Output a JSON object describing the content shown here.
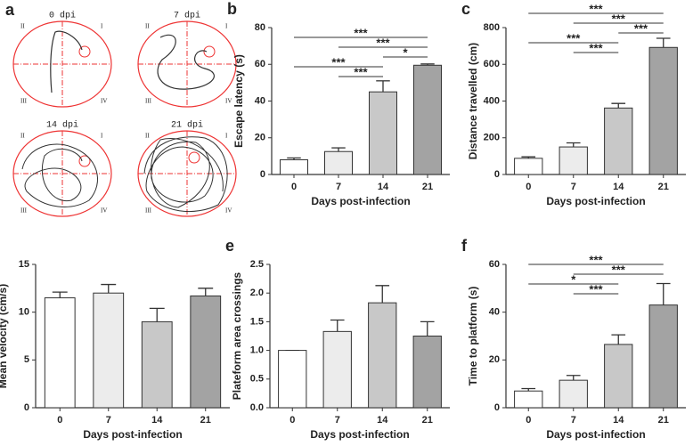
{
  "track_panel": {
    "label": "a",
    "titles": [
      "0 dpi",
      "7 dpi",
      "14 dpi",
      "21 dpi"
    ],
    "quadrants": [
      "I",
      "II",
      "III",
      "IV"
    ]
  },
  "chart_data": [
    {
      "type": "bar",
      "label": "b",
      "y_label": "Escape latency (s)",
      "x_label": "Days post-infection",
      "categories": [
        "0",
        "7",
        "14",
        "21"
      ],
      "values": [
        8,
        12.5,
        45,
        59.5
      ],
      "errors": [
        1,
        2,
        6,
        0.7
      ],
      "colors": [
        "#ffffff",
        "#ececec",
        "#c8c8c8",
        "#a3a3a3"
      ],
      "ylim": [
        0,
        80
      ],
      "yticks": [
        0,
        20,
        40,
        60,
        80
      ],
      "comparisons": [
        {
          "groups": [
            "0",
            "21"
          ],
          "label": "***"
        },
        {
          "groups": [
            "7",
            "21"
          ],
          "label": "***"
        },
        {
          "groups": [
            "14",
            "21"
          ],
          "label": "*"
        },
        {
          "groups": [
            "0",
            "14"
          ],
          "label": "***"
        },
        {
          "groups": [
            "7",
            "14"
          ],
          "label": "***"
        }
      ]
    },
    {
      "type": "bar",
      "label": "c",
      "y_label": "Distance travelled (cm)",
      "x_label": "Days post-infection",
      "categories": [
        "0",
        "7",
        "14",
        "21"
      ],
      "values": [
        88,
        150,
        362,
        692
      ],
      "errors": [
        8,
        22,
        25,
        50
      ],
      "colors": [
        "#ffffff",
        "#ececec",
        "#c8c8c8",
        "#a3a3a3"
      ],
      "ylim": [
        0,
        800
      ],
      "yticks": [
        0,
        200,
        400,
        600,
        800
      ],
      "comparisons": [
        {
          "groups": [
            "0",
            "21"
          ],
          "label": "***"
        },
        {
          "groups": [
            "7",
            "21"
          ],
          "label": "***"
        },
        {
          "groups": [
            "14",
            "21"
          ],
          "label": "***"
        },
        {
          "groups": [
            "0",
            "14"
          ],
          "label": "***"
        },
        {
          "groups": [
            "7",
            "14"
          ],
          "label": "***"
        }
      ]
    },
    {
      "type": "bar",
      "label": "d",
      "y_label": "Mean velocity (cm/s)",
      "x_label": "Days post-infection",
      "categories": [
        "0",
        "7",
        "14",
        "21"
      ],
      "values": [
        11.5,
        12,
        9,
        11.7
      ],
      "errors": [
        0.6,
        0.9,
        1.4,
        0.8
      ],
      "colors": [
        "#ffffff",
        "#ececec",
        "#c8c8c8",
        "#a3a3a3"
      ],
      "ylim": [
        0,
        15
      ],
      "yticks": [
        0,
        5,
        10,
        15
      ],
      "comparisons": []
    },
    {
      "type": "bar",
      "label": "e",
      "y_label": "Plateform area crossings",
      "x_label": "Days post-infection",
      "categories": [
        "0",
        "7",
        "14",
        "21"
      ],
      "values": [
        1.0,
        1.33,
        1.83,
        1.25
      ],
      "errors": [
        0,
        0.2,
        0.3,
        0.25
      ],
      "colors": [
        "#ffffff",
        "#ececec",
        "#c8c8c8",
        "#a3a3a3"
      ],
      "ylim": [
        0,
        2.5
      ],
      "yticks": [
        {
          "value": 0,
          "label": "0.0"
        },
        0.5,
        {
          "value": 1,
          "label": "1.0"
        },
        1.5,
        {
          "value": 2,
          "label": "2.0"
        },
        2.5
      ],
      "comparisons": []
    },
    {
      "type": "bar",
      "label": "f",
      "y_label": "Time to platform (s)",
      "x_label": "Days post-infection",
      "categories": [
        "0",
        "7",
        "14",
        "21"
      ],
      "values": [
        7,
        11.5,
        26.5,
        43
      ],
      "errors": [
        1,
        2,
        4,
        9
      ],
      "colors": [
        "#ffffff",
        "#ececec",
        "#c8c8c8",
        "#a3a3a3"
      ],
      "ylim": [
        0,
        60
      ],
      "yticks": [
        0,
        20,
        40,
        60
      ],
      "comparisons": [
        {
          "groups": [
            "0",
            "21"
          ],
          "label": "***"
        },
        {
          "groups": [
            "7",
            "21"
          ],
          "label": "***"
        },
        {
          "groups": [
            "0",
            "14"
          ],
          "label": "*"
        },
        {
          "groups": [
            "7",
            "14"
          ],
          "label": "***"
        }
      ]
    }
  ]
}
